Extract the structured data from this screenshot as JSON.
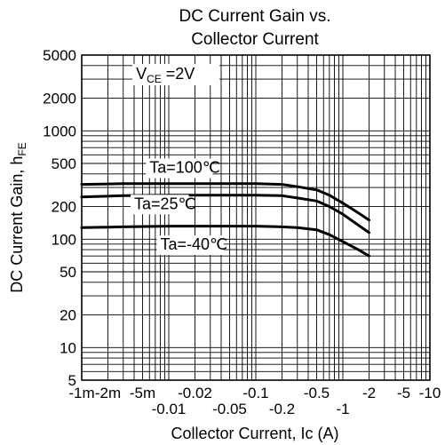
{
  "chart_data": {
    "type": "line",
    "title": [
      "DC Current Gain vs.",
      "Collector Current"
    ],
    "xlabel": "Collector Current, Ic (A)",
    "ylabel": "DC Current Gain,  h",
    "ylabel_sub": "FE",
    "x_scale": "log",
    "y_scale": "log",
    "xlim": [
      -0.001,
      -10
    ],
    "ylim": [
      5,
      5000
    ],
    "grid": true,
    "x_ticks_upper": [
      {
        "value": -0.001,
        "label": "-1m"
      },
      {
        "value": -0.002,
        "label": "-2m"
      },
      {
        "value": -0.005,
        "label": "-5m"
      },
      {
        "value": -0.02,
        "label": "-0.02"
      },
      {
        "value": -0.1,
        "label": "-0.1"
      },
      {
        "value": -0.5,
        "label": "-0.5"
      },
      {
        "value": -2,
        "label": "-2"
      },
      {
        "value": -5,
        "label": "-5"
      },
      {
        "value": -10,
        "label": "-10"
      }
    ],
    "x_ticks_lower": [
      {
        "value": -0.01,
        "label": "-0.01"
      },
      {
        "value": -0.05,
        "label": "-0.05"
      },
      {
        "value": -0.2,
        "label": "-0.2"
      },
      {
        "value": -1,
        "label": "-1"
      }
    ],
    "y_ticks": [
      {
        "value": 5000,
        "label": "5000"
      },
      {
        "value": 2000,
        "label": "2000"
      },
      {
        "value": 1000,
        "label": "1000"
      },
      {
        "value": 500,
        "label": "500"
      },
      {
        "value": 200,
        "label": "200"
      },
      {
        "value": 100,
        "label": "100"
      },
      {
        "value": 50,
        "label": "50"
      },
      {
        "value": 20,
        "label": "20"
      },
      {
        "value": 10,
        "label": "10"
      },
      {
        "value": 5,
        "label": "5"
      }
    ],
    "condition": {
      "main": "V",
      "sub": "CE",
      "rest": " =2V"
    },
    "series": [
      {
        "name": "Ta=100℃",
        "x": [
          -0.001,
          -0.003,
          -0.01,
          -0.03,
          -0.1,
          -0.2,
          -0.3,
          -0.5,
          -0.7,
          -1,
          -1.5,
          -2
        ],
        "y": [
          320,
          325,
          325,
          325,
          325,
          320,
          305,
          285,
          255,
          215,
          175,
          150
        ]
      },
      {
        "name": "Ta=25℃",
        "x": [
          -0.001,
          -0.003,
          -0.01,
          -0.03,
          -0.1,
          -0.2,
          -0.3,
          -0.5,
          -0.7,
          -1,
          -1.5,
          -2
        ],
        "y": [
          245,
          252,
          255,
          255,
          255,
          252,
          240,
          225,
          200,
          170,
          135,
          115
        ]
      },
      {
        "name": "Ta=-40℃",
        "x": [
          -0.001,
          -0.003,
          -0.01,
          -0.03,
          -0.1,
          -0.2,
          -0.3,
          -0.5,
          -0.7,
          -1,
          -1.5,
          -2
        ],
        "y": [
          128,
          130,
          132,
          132,
          132,
          130,
          128,
          122,
          110,
          95,
          80,
          70
        ]
      }
    ],
    "series_labels": [
      {
        "series": 0,
        "x": -0.006,
        "y": 410
      },
      {
        "series": 1,
        "x": -0.004,
        "y": 190
      },
      {
        "series": 2,
        "x": -0.008,
        "y": 80
      }
    ]
  }
}
